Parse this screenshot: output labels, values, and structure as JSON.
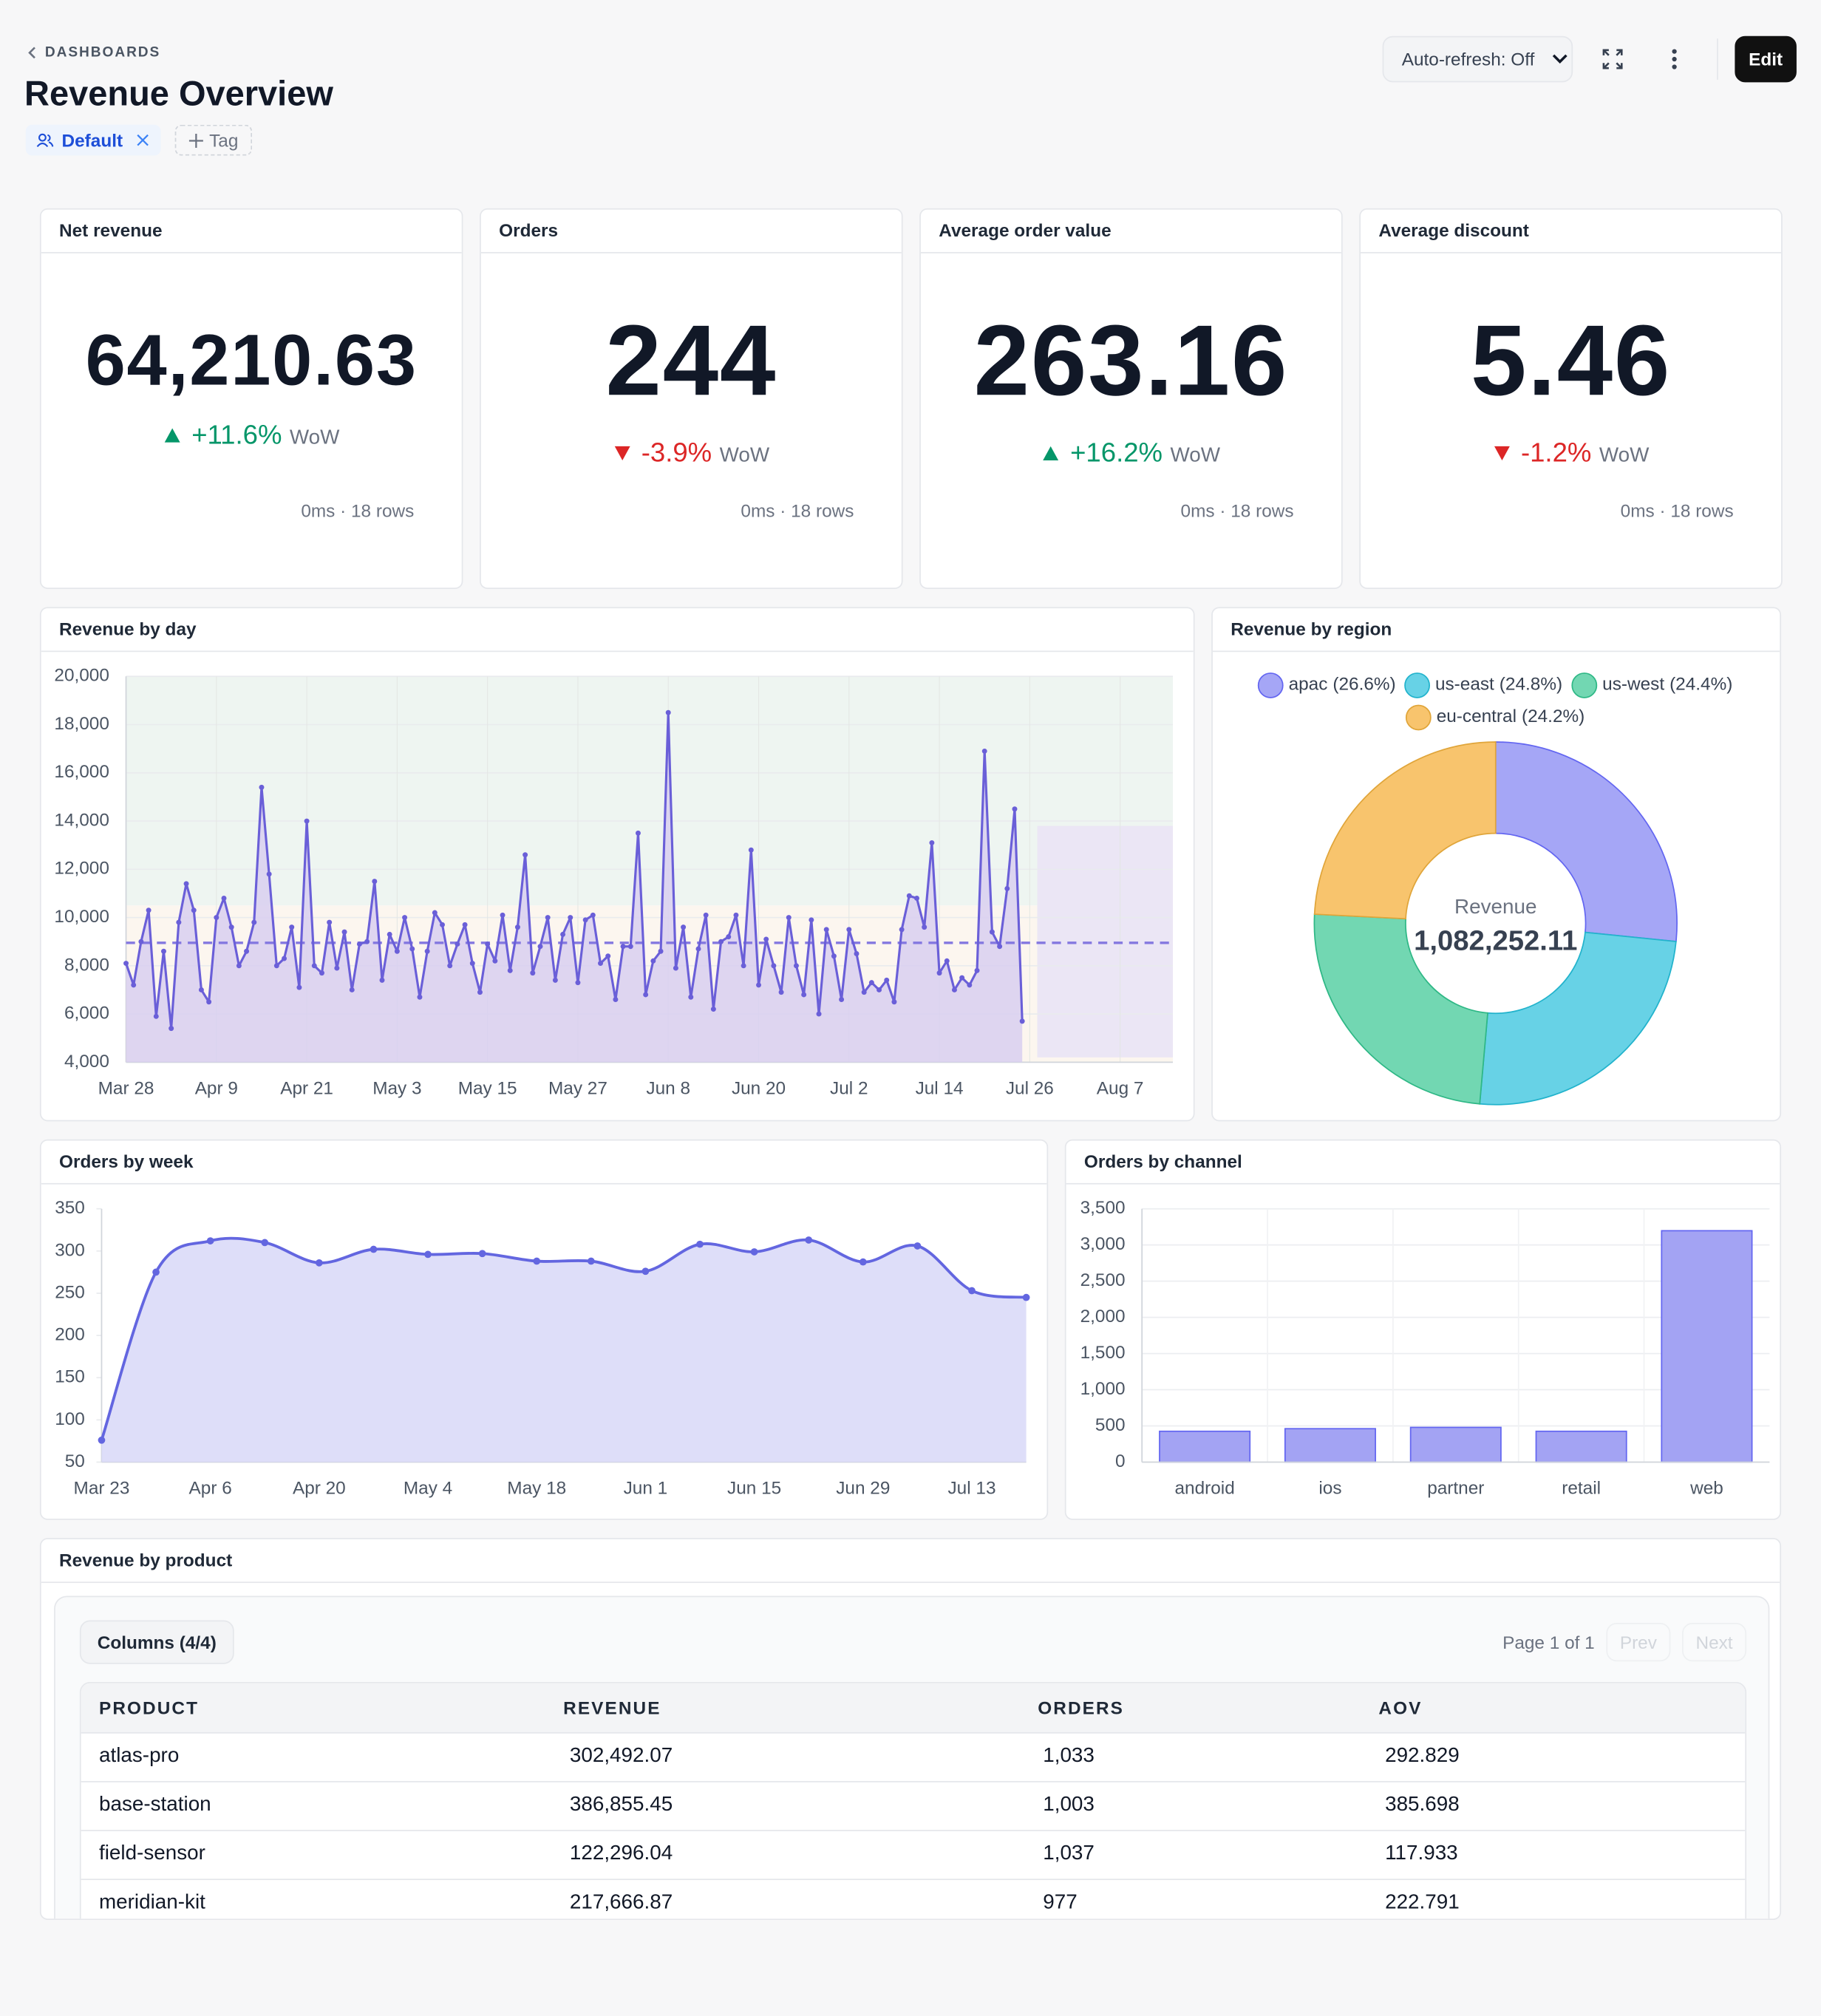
{
  "header": {
    "breadcrumb": "DASHBOARDS",
    "title": "Revenue Overview",
    "tags": [
      "Default"
    ],
    "add_tag": "Tag",
    "auto_refresh": "Auto-refresh: Off",
    "edit": "Edit"
  },
  "kpis": [
    {
      "title": "Net revenue",
      "value": 64210.63,
      "value_label": "64,210.63",
      "delta": 11.6,
      "delta_label": "+11.6%",
      "delta_unit": "WoW",
      "meta": "0ms · 18 rows"
    },
    {
      "title": "Orders",
      "value": 244,
      "value_label": "244",
      "delta": -3.9,
      "delta_label": "-3.9%",
      "delta_unit": "WoW",
      "meta": "0ms · 18 rows"
    },
    {
      "title": "Average order value",
      "value": 263.16,
      "value_label": "263.16",
      "delta": 16.2,
      "delta_label": "+16.2%",
      "delta_unit": "WoW",
      "meta": "0ms · 18 rows"
    },
    {
      "title": "Average discount",
      "value": 5.46,
      "value_label": "5.46",
      "delta": -1.2,
      "delta_label": "-1.2%",
      "delta_unit": "WoW",
      "meta": "0ms · 18 rows"
    }
  ],
  "chart_data": [
    {
      "type": "line",
      "title": "Revenue by day",
      "color": "#6a5fd8",
      "area_color": "#d8cff0",
      "x": [
        "Mar 28",
        "Mar 29",
        "Mar 30",
        "Mar 31",
        "Apr 1",
        "Apr 2",
        "Apr 3",
        "Apr 4",
        "Apr 5",
        "Apr 6",
        "Apr 7",
        "Apr 8",
        "Apr 9",
        "Apr 10",
        "Apr 11",
        "Apr 12",
        "Apr 13",
        "Apr 14",
        "Apr 15",
        "Apr 16",
        "Apr 17",
        "Apr 18",
        "Apr 19",
        "Apr 20",
        "Apr 21",
        "Apr 22",
        "Apr 23",
        "Apr 24",
        "Apr 25",
        "Apr 26",
        "Apr 27",
        "Apr 28",
        "Apr 29",
        "Apr 30",
        "May 1",
        "May 2",
        "May 3",
        "May 4",
        "May 5",
        "May 6",
        "May 7",
        "May 8",
        "May 9",
        "May 10",
        "May 11",
        "May 12",
        "May 13",
        "May 14",
        "May 15",
        "May 16",
        "May 17",
        "May 18",
        "May 19",
        "May 20",
        "May 21",
        "May 22",
        "May 23",
        "May 24",
        "May 25",
        "May 26",
        "May 27",
        "May 28",
        "May 29",
        "May 30",
        "May 31",
        "Jun 1",
        "Jun 2",
        "Jun 3",
        "Jun 4",
        "Jun 5",
        "Jun 6",
        "Jun 7",
        "Jun 8",
        "Jun 9",
        "Jun 10",
        "Jun 11",
        "Jun 12",
        "Jun 13",
        "Jun 14",
        "Jun 15",
        "Jun 16",
        "Jun 17",
        "Jun 18",
        "Jun 19",
        "Jun 20",
        "Jun 21",
        "Jun 22",
        "Jun 23",
        "Jun 24",
        "Jun 25",
        "Jun 26",
        "Jun 27",
        "Jun 28",
        "Jun 29",
        "Jun 30",
        "Jul 1",
        "Jul 2",
        "Jul 3",
        "Jul 4",
        "Jul 5",
        "Jul 6",
        "Jul 7",
        "Jul 8",
        "Jul 9",
        "Jul 10",
        "Jul 11",
        "Jul 12",
        "Jul 13",
        "Jul 14",
        "Jul 15",
        "Jul 16",
        "Jul 17",
        "Jul 18",
        "Jul 19",
        "Jul 20",
        "Jul 21",
        "Jul 22",
        "Jul 23",
        "Jul 24",
        "Jul 25"
      ],
      "values": [
        8100,
        7200,
        9000,
        10300,
        5900,
        8600,
        5400,
        9800,
        11400,
        10300,
        7000,
        6500,
        10000,
        10800,
        9600,
        8000,
        8600,
        9800,
        15400,
        11800,
        8000,
        8300,
        9600,
        7100,
        14000,
        8000,
        7700,
        9800,
        7900,
        9400,
        7000,
        8900,
        9000,
        11500,
        7400,
        9300,
        8600,
        10000,
        8700,
        6700,
        8600,
        10200,
        9700,
        8000,
        8900,
        9700,
        8100,
        6900,
        8900,
        8200,
        10100,
        7800,
        9600,
        12600,
        7700,
        8800,
        10000,
        7400,
        9300,
        10000,
        7300,
        9900,
        10100,
        8100,
        8400,
        6600,
        8800,
        8800,
        13500,
        6800,
        8200,
        8600,
        18500,
        7900,
        9600,
        6700,
        8700,
        10100,
        6200,
        9000,
        9200,
        10100,
        8000,
        12800,
        7200,
        9100,
        8000,
        6900,
        10000,
        8000,
        6800,
        9900,
        6000,
        9500,
        8400,
        6600,
        9500,
        8500,
        6900,
        7300,
        7000,
        7400,
        6500,
        9500,
        10900,
        10800,
        9600,
        13100,
        7700,
        8200,
        7000,
        7500,
        7200,
        7800,
        16900,
        9400,
        8800,
        11200,
        14500,
        5700
      ],
      "xlim": [
        "Mar 28",
        "Aug 14"
      ],
      "xticks": [
        "Mar 28",
        "Apr 9",
        "Apr 21",
        "May 3",
        "May 15",
        "May 27",
        "Jun 8",
        "Jun 20",
        "Jul 2",
        "Jul 14",
        "Jul 26",
        "Aug 7"
      ],
      "ylim": [
        4000,
        20000
      ],
      "yticks": [
        {
          "value": 4000,
          "label": "4,000"
        },
        {
          "value": 6000,
          "label": "6,000"
        },
        {
          "value": 8000,
          "label": "8,000"
        },
        {
          "value": 10000,
          "label": "10,000"
        },
        {
          "value": 12000,
          "label": "12,000"
        },
        {
          "value": 14000,
          "label": "14,000"
        },
        {
          "value": 16000,
          "label": "16,000"
        },
        {
          "value": 18000,
          "label": "18,000"
        },
        {
          "value": 20000,
          "label": "20,000"
        }
      ],
      "bands": [
        {
          "from": 10500,
          "to": 20000,
          "color": "#eef5f1"
        },
        {
          "from": 4000,
          "to": 10500,
          "color": "#fcf6ef"
        }
      ],
      "reference_line": 8950,
      "forecast": {
        "start": "Jul 27",
        "end": "Aug 14",
        "low": 4200,
        "high": 13800,
        "color": "#ebe6f5"
      },
      "grid": true
    },
    {
      "type": "area",
      "title": "Orders by week",
      "color": "#6366e0",
      "area_color": "#d8d8f8",
      "x": [
        "Mar 23",
        "Mar 30",
        "Apr 6",
        "Apr 13",
        "Apr 20",
        "Apr 27",
        "May 4",
        "May 11",
        "May 18",
        "May 25",
        "Jun 1",
        "Jun 8",
        "Jun 15",
        "Jun 22",
        "Jun 29",
        "Jul 6",
        "Jul 13",
        "Jul 20"
      ],
      "values": [
        76,
        275,
        312,
        310,
        286,
        302,
        296,
        297,
        288,
        288,
        276,
        308,
        299,
        313,
        287,
        306,
        253,
        245
      ],
      "xlim": [
        "Mar 23",
        "Jul 20"
      ],
      "xticks": [
        "Mar 23",
        "Apr 6",
        "Apr 20",
        "May 4",
        "May 18",
        "Jun 1",
        "Jun 15",
        "Jun 29",
        "Jul 13"
      ],
      "ylim": [
        50,
        350
      ],
      "yticks": [
        50,
        100,
        150,
        200,
        250,
        300,
        350
      ],
      "grid": false
    },
    {
      "type": "bar",
      "title": "Orders by channel",
      "color": "#a3a3f3",
      "stroke": "#6366f1",
      "categories": [
        "android",
        "ios",
        "partner",
        "retail",
        "web"
      ],
      "values": [
        426,
        462,
        480,
        426,
        3197
      ],
      "ylim": [
        0,
        3500
      ],
      "yticks": [
        0,
        500,
        {
          "value": 1000,
          "label": "1,000"
        },
        {
          "value": 1500,
          "label": "1,500"
        },
        {
          "value": 2000,
          "label": "2,000"
        },
        {
          "value": 2500,
          "label": "2,500"
        },
        {
          "value": 3000,
          "label": "3,000"
        },
        {
          "value": 3500,
          "label": "3,500"
        }
      ],
      "grid": true
    },
    {
      "type": "donut",
      "title": "Revenue by region",
      "categories": [
        "apac",
        "us-east",
        "us-west",
        "eu-central"
      ],
      "values": [
        26.6,
        24.8,
        24.4,
        24.2
      ],
      "value_labels": [
        "(26.6%)",
        "(24.8%)",
        "(24.4%)",
        "(24.2%)"
      ],
      "colors": [
        "#a5a6f6",
        "#67d2e6",
        "#72d7b2",
        "#f8c46d"
      ],
      "stroke_colors": [
        "#6366f1",
        "#22b3cc",
        "#2fb886",
        "#e0a53a"
      ],
      "center_label": "Revenue",
      "center_value": 1082252.11,
      "center_value_label": "1,082,252.11"
    }
  ],
  "table": {
    "title": "Revenue by product",
    "columns_button": "Columns (4/4)",
    "pagination": "Page 1 of 1",
    "prev": "Prev",
    "next": "Next",
    "columns": [
      "PRODUCT",
      "REVENUE",
      "ORDERS",
      "AOV"
    ],
    "rows": [
      [
        "atlas-pro",
        "302,492.07",
        "1,033",
        "292.829"
      ],
      [
        "base-station",
        "386,855.45",
        "1,003",
        "385.698"
      ],
      [
        "field-sensor",
        "122,296.04",
        "1,037",
        "117.933"
      ],
      [
        "meridian-kit",
        "217,666.87",
        "977",
        "222.791"
      ]
    ]
  }
}
